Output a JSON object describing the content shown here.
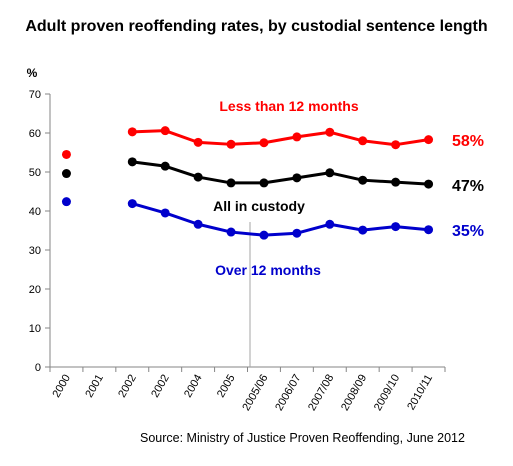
{
  "chart_data": {
    "type": "line",
    "title": "Adult proven reoffending rates, by custodial sentence length",
    "ylabel": "%",
    "ylim": [
      0,
      70
    ],
    "yticks": [
      0,
      10,
      20,
      30,
      40,
      50,
      60,
      70
    ],
    "x": [
      "2000",
      "2001",
      "2002",
      "2002",
      "2004",
      "2005",
      "2005/06",
      "2006/07",
      "2007/08",
      "2008/09",
      "2009/10",
      "2010/11"
    ],
    "grid": false,
    "annotations": [
      "Less than 12 months",
      "All in custody",
      "Over 12 months"
    ],
    "end_labels": [
      "58%",
      "47%",
      "35%"
    ],
    "source": "Source: Ministry of Justice Proven Reoffending, June 2012",
    "series": [
      {
        "name": "Less than 12 months",
        "color": "#ff0000",
        "values": [
          54.5,
          null,
          60.3,
          60.6,
          57.6,
          57.1,
          57.5,
          59.0,
          60.2,
          58.0,
          57.0,
          58.3
        ]
      },
      {
        "name": "All in custody",
        "color": "#000000",
        "values": [
          49.6,
          null,
          52.6,
          51.5,
          48.7,
          47.2,
          47.2,
          48.5,
          49.8,
          47.9,
          47.4,
          46.9
        ]
      },
      {
        "name": "Over 12 months",
        "color": "#0000cc",
        "values": [
          42.4,
          null,
          41.9,
          39.5,
          36.6,
          34.6,
          33.8,
          34.3,
          36.6,
          35.1,
          36.0,
          35.2
        ]
      }
    ]
  }
}
